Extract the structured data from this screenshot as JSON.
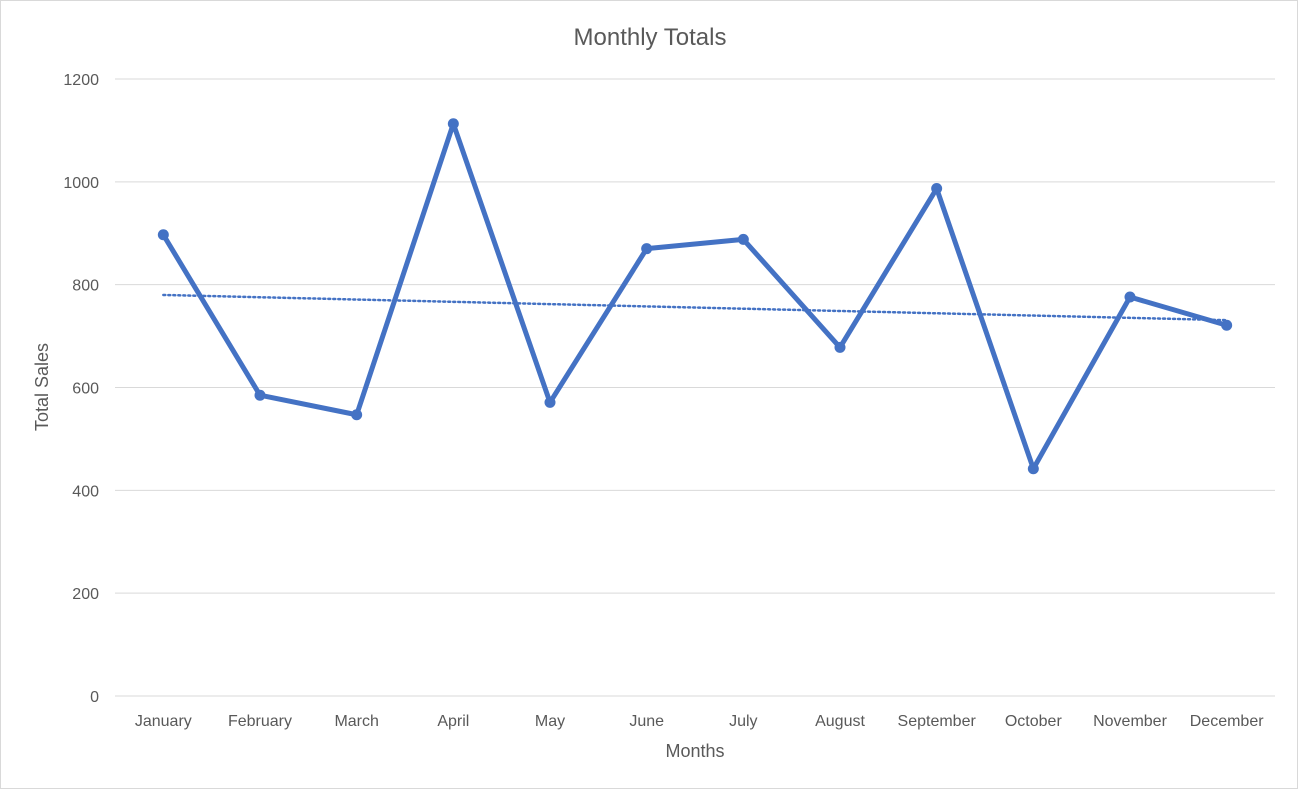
{
  "chart_data": {
    "type": "line",
    "title": "Monthly Totals",
    "xlabel": "Months",
    "ylabel": "Total Sales",
    "categories": [
      "January",
      "February",
      "March",
      "April",
      "May",
      "June",
      "July",
      "August",
      "September",
      "October",
      "November",
      "December"
    ],
    "series": [
      {
        "values": [
          897,
          585,
          547,
          1113,
          571,
          870,
          888,
          678,
          987,
          442,
          776,
          721
        ]
      }
    ],
    "trendline": {
      "type": "linear",
      "style": "dotted",
      "start": 780,
      "end": 731
    },
    "ylim": [
      0,
      1200
    ],
    "yticks": [
      "0",
      "200",
      "400",
      "600",
      "800",
      "1000",
      "1200"
    ],
    "grid": true,
    "legend": "none",
    "colors": {
      "series": "#4472c4",
      "grid": "#d9d9d9",
      "text": "#595959"
    }
  }
}
